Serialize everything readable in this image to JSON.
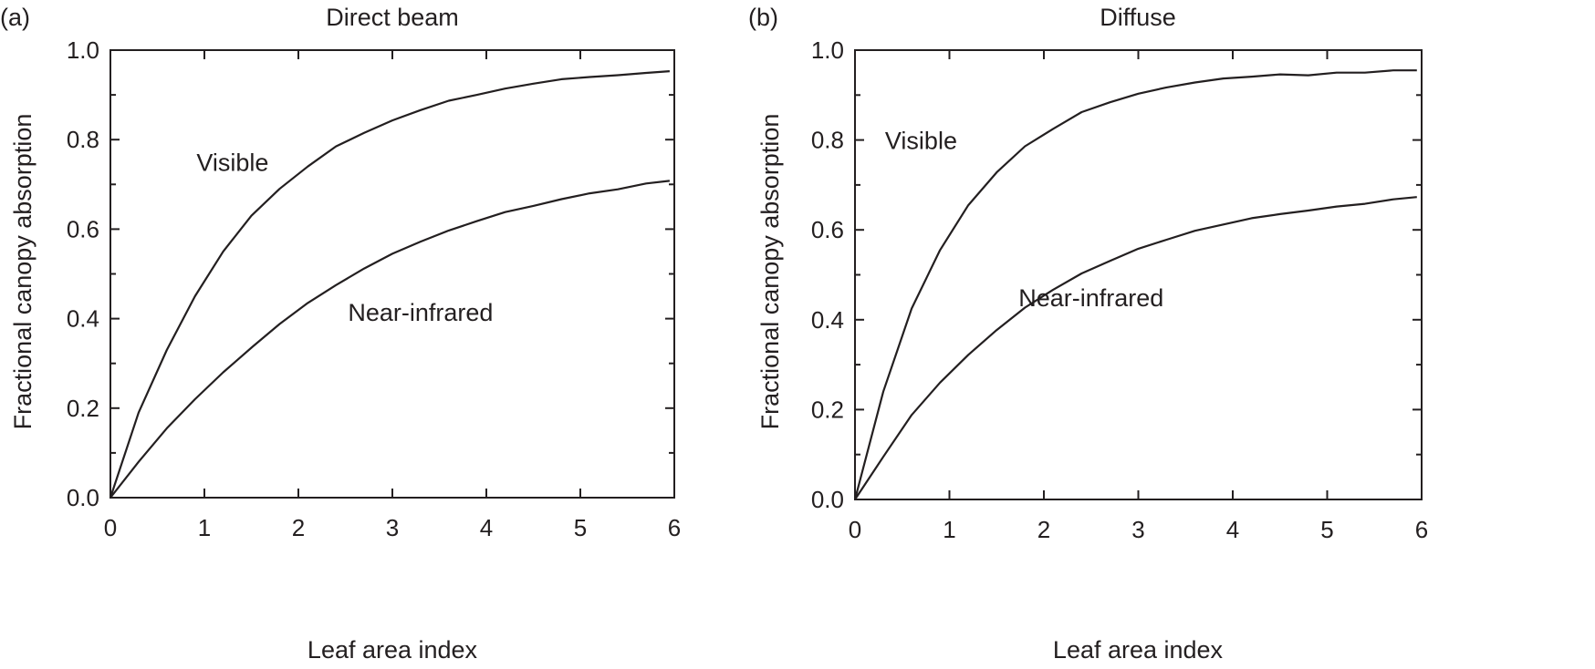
{
  "chart_data": [
    {
      "type": "line",
      "panel_label": "(a)",
      "title": "Direct beam",
      "xlabel": "Leaf area index",
      "ylabel": "Fractional canopy absorption",
      "xlim": [
        0,
        6
      ],
      "ylim": [
        0,
        1
      ],
      "xticks": [
        "0",
        "1",
        "2",
        "3",
        "4",
        "5",
        "6"
      ],
      "yticks": [
        "0.0",
        "0.2",
        "0.4",
        "0.6",
        "0.8",
        "1.0"
      ],
      "grid": false,
      "series": [
        {
          "x": [
            0,
            0.3,
            0.6,
            0.9,
            1.2,
            1.5,
            1.8,
            2.1,
            2.4,
            2.7,
            3.0,
            3.3,
            3.6,
            3.9,
            4.2,
            4.5,
            4.8,
            5.1,
            5.4,
            5.7,
            5.95
          ],
          "values": [
            0,
            0.19,
            0.33,
            0.45,
            0.55,
            0.63,
            0.69,
            0.74,
            0.785,
            0.815,
            0.843,
            0.866,
            0.887,
            0.9,
            0.914,
            0.925,
            0.935,
            0.94,
            0.944,
            0.949,
            0.953
          ]
        },
        {
          "x": [
            0,
            0.3,
            0.6,
            0.9,
            1.2,
            1.5,
            1.8,
            2.1,
            2.4,
            2.7,
            3.0,
            3.3,
            3.6,
            3.9,
            4.2,
            4.5,
            4.8,
            5.1,
            5.4,
            5.7,
            5.95
          ],
          "values": [
            0,
            0.08,
            0.155,
            0.22,
            0.28,
            0.335,
            0.388,
            0.435,
            0.475,
            0.512,
            0.545,
            0.572,
            0.597,
            0.618,
            0.638,
            0.652,
            0.667,
            0.68,
            0.689,
            0.702,
            0.708
          ]
        }
      ],
      "annotations": [
        {
          "text": "Visible",
          "x": 1.3,
          "y": 0.73
        },
        {
          "text": "Near-infrared",
          "x": 3.3,
          "y": 0.395
        }
      ]
    },
    {
      "type": "line",
      "panel_label": "(b)",
      "title": "Diffuse",
      "xlabel": "Leaf area index",
      "ylabel": "Fractional canopy absorption",
      "xlim": [
        0,
        6
      ],
      "ylim": [
        0,
        1
      ],
      "xticks": [
        "0",
        "1",
        "2",
        "3",
        "4",
        "5",
        "6"
      ],
      "yticks": [
        "0.0",
        "0.2",
        "0.4",
        "0.6",
        "0.8",
        "1.0"
      ],
      "grid": false,
      "series": [
        {
          "x": [
            0,
            0.3,
            0.6,
            0.9,
            1.2,
            1.5,
            1.8,
            2.1,
            2.4,
            2.7,
            3.0,
            3.3,
            3.6,
            3.9,
            4.2,
            4.5,
            4.8,
            5.1,
            5.4,
            5.7,
            5.95
          ],
          "values": [
            0,
            0.24,
            0.425,
            0.555,
            0.655,
            0.728,
            0.786,
            0.825,
            0.862,
            0.884,
            0.903,
            0.917,
            0.928,
            0.937,
            0.941,
            0.946,
            0.944,
            0.95,
            0.95,
            0.955,
            0.955
          ]
        },
        {
          "x": [
            0,
            0.3,
            0.6,
            0.9,
            1.2,
            1.5,
            1.8,
            2.1,
            2.4,
            2.7,
            3.0,
            3.3,
            3.6,
            3.9,
            4.2,
            4.5,
            4.8,
            5.1,
            5.4,
            5.7,
            5.95
          ],
          "values": [
            0,
            0.095,
            0.188,
            0.26,
            0.322,
            0.377,
            0.427,
            0.467,
            0.503,
            0.531,
            0.558,
            0.578,
            0.598,
            0.612,
            0.626,
            0.635,
            0.643,
            0.652,
            0.658,
            0.668,
            0.673
          ]
        }
      ],
      "annotations": [
        {
          "text": "Visible",
          "x": 0.7,
          "y": 0.78
        },
        {
          "text": "Near-infrared",
          "x": 2.5,
          "y": 0.43
        }
      ]
    }
  ]
}
